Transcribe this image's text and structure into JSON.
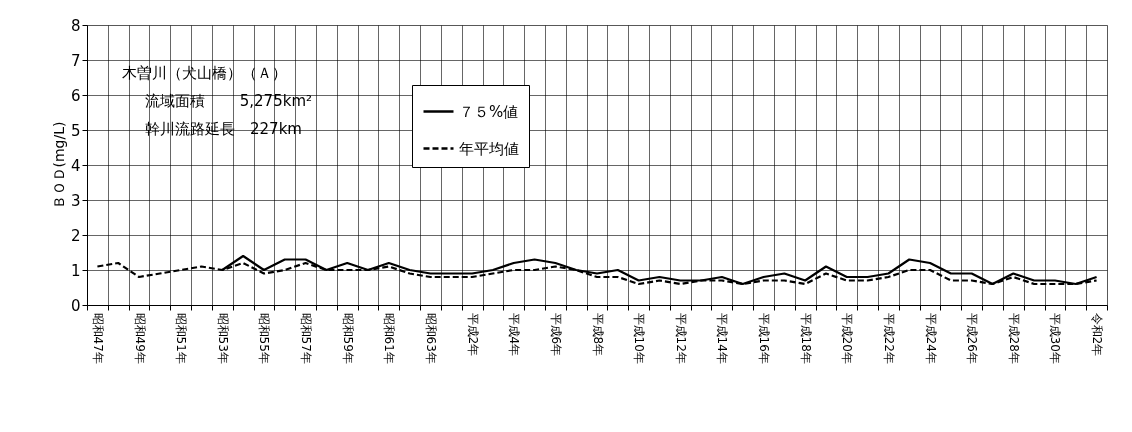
{
  "chart_data": {
    "type": "line",
    "ylabel": "ＢＯＤ(mg/L)",
    "categories": [
      "昭和47年",
      null,
      "昭和49年",
      null,
      "昭和51年",
      null,
      "昭和53年",
      null,
      "昭和55年",
      null,
      "昭和57年",
      null,
      "昭和59年",
      null,
      "昭和61年",
      null,
      "昭和63年",
      null,
      "平成2年",
      null,
      "平成4年",
      null,
      "平成6年",
      null,
      "平成8年",
      null,
      "平成10年",
      null,
      "平成12年",
      null,
      "平成14年",
      null,
      "平成16年",
      null,
      "平成18年",
      null,
      "平成20年",
      null,
      "平成22年",
      null,
      "平成24年",
      null,
      "平成26年",
      null,
      "平成28年",
      null,
      "平成30年",
      null,
      "令和2年"
    ],
    "series": [
      {
        "name": "７５%値",
        "color": "#000000",
        "line_style": "solid",
        "values": [
          null,
          null,
          null,
          null,
          null,
          null,
          1.0,
          1.4,
          1.0,
          1.3,
          1.3,
          1.0,
          1.2,
          1.0,
          1.2,
          1.0,
          0.9,
          0.9,
          0.9,
          1.0,
          1.2,
          1.3,
          1.2,
          1.0,
          0.9,
          1.0,
          0.7,
          0.8,
          0.7,
          0.7,
          0.8,
          0.6,
          0.8,
          0.9,
          0.7,
          1.1,
          0.8,
          0.8,
          0.9,
          1.3,
          1.2,
          0.9,
          0.9,
          0.6,
          0.9,
          0.7,
          0.7,
          0.6,
          0.8
        ]
      },
      {
        "name": "年平均値",
        "color": "#000000",
        "line_style": "dashed",
        "values": [
          1.1,
          1.2,
          0.8,
          0.9,
          1.0,
          1.1,
          1.0,
          1.2,
          0.9,
          1.0,
          1.2,
          1.0,
          1.0,
          1.0,
          1.1,
          0.9,
          0.8,
          0.8,
          0.8,
          0.9,
          1.0,
          1.0,
          1.1,
          1.0,
          0.8,
          0.8,
          0.6,
          0.7,
          0.6,
          0.7,
          0.7,
          0.6,
          0.7,
          0.7,
          0.6,
          0.9,
          0.7,
          0.7,
          0.8,
          1.0,
          1.0,
          0.7,
          0.7,
          0.6,
          0.8,
          0.6,
          0.6,
          0.6,
          0.7
        ]
      }
    ],
    "ylim": [
      0,
      8
    ],
    "yticks": [
      0,
      1,
      2,
      3,
      4,
      5,
      6,
      7,
      8
    ],
    "grid": true,
    "legend": "top left",
    "marker": "none",
    "annotations": [
      "木曽川（犬山橋）（Ａ）",
      "流域面積　　 5,275km²",
      "幹川流路延長　227km"
    ]
  }
}
